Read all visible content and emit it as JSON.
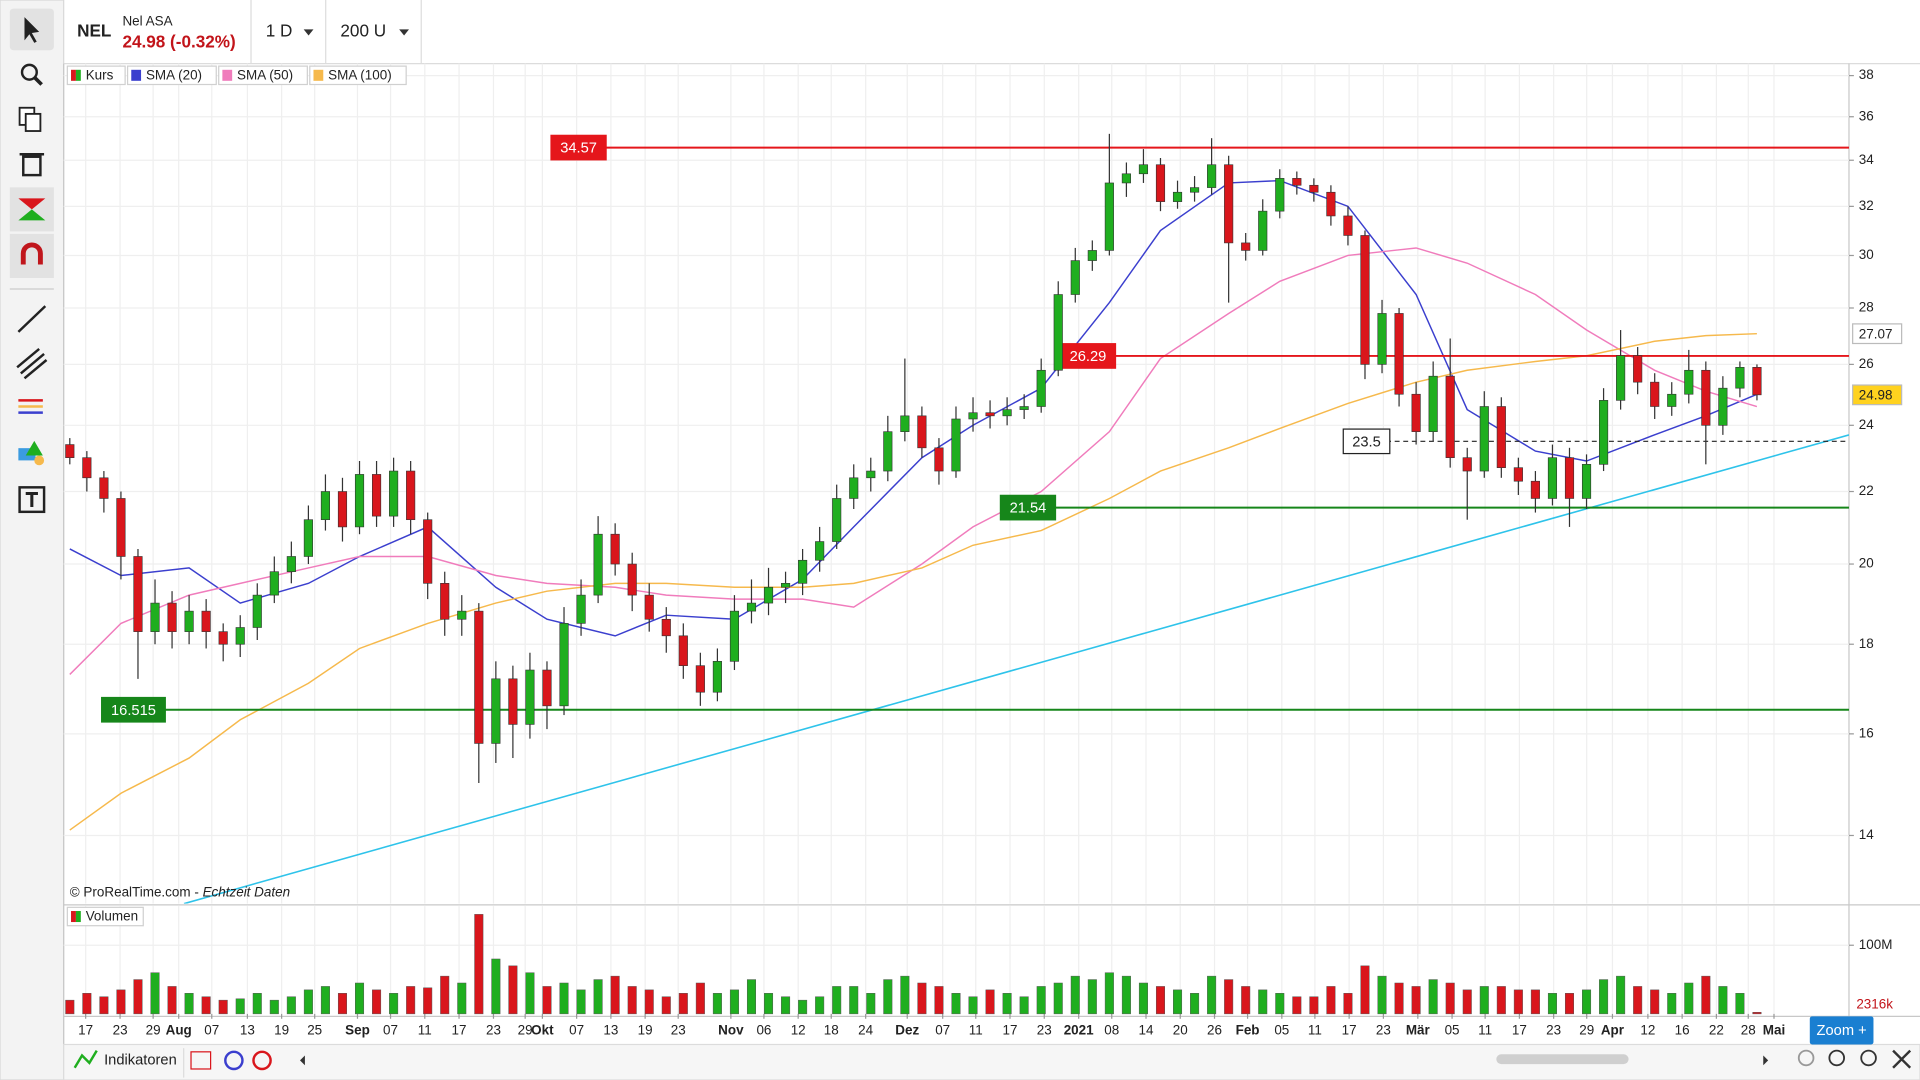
{
  "header": {
    "symbol": "NEL",
    "name": "Nel ASA",
    "quote": "24.98 (-0.32%)",
    "interval": "1 D",
    "units": "200 U"
  },
  "source": [
    "© ProRealTime.com -",
    "Echtzeit Daten"
  ],
  "footer": {
    "indicators": "Indikatoren",
    "zoom": "Zoom +"
  },
  "chart_data": [
    {
      "type": "candlestick",
      "log_scale": true,
      "grid": true,
      "up_color": "#1fae1f",
      "down_color": "#d9161c",
      "series": [
        {
          "name": "Kurs",
          "open": [
            23.4,
            23.0,
            22.4,
            21.8,
            20.2,
            18.3,
            19.0,
            18.3,
            18.8,
            18.3,
            18.0,
            18.4,
            19.2,
            19.8,
            20.2,
            21.2,
            22.0,
            21.0,
            22.5,
            21.3,
            22.6,
            21.2,
            19.5,
            18.6,
            18.8,
            15.8,
            17.2,
            16.2,
            17.4,
            16.6,
            18.5,
            19.2,
            20.8,
            20.0,
            19.2,
            18.6,
            18.2,
            17.5,
            16.9,
            17.6,
            18.8,
            19.0,
            19.4,
            19.5,
            20.1,
            20.6,
            21.8,
            22.4,
            22.6,
            23.8,
            24.3,
            23.3,
            22.6,
            24.2,
            24.4,
            24.3,
            24.5,
            24.6,
            25.8,
            28.5,
            29.8,
            30.2,
            33.0,
            33.4,
            33.8,
            32.2,
            32.6,
            32.8,
            33.8,
            30.5,
            30.2,
            31.8,
            33.2,
            32.9,
            32.6,
            31.6,
            30.8,
            26.0,
            27.8,
            25.0,
            23.8,
            25.6,
            23.0,
            22.6,
            24.6,
            22.7,
            22.3,
            21.8,
            23.0,
            21.8,
            22.8,
            24.8,
            26.3,
            25.4,
            24.6,
            25.0,
            25.8,
            24.0,
            25.2,
            25.9
          ],
          "high": [
            23.6,
            23.2,
            22.6,
            22.0,
            20.4,
            19.6,
            19.3,
            19.2,
            19.1,
            18.5,
            18.7,
            19.5,
            20.2,
            20.6,
            21.6,
            22.5,
            22.4,
            22.9,
            22.9,
            23.0,
            22.9,
            21.4,
            19.8,
            19.2,
            19.0,
            17.6,
            17.5,
            17.8,
            17.6,
            18.9,
            19.6,
            21.3,
            21.1,
            20.3,
            19.5,
            18.9,
            18.5,
            17.8,
            17.9,
            19.2,
            19.6,
            19.9,
            19.8,
            20.4,
            21.0,
            22.2,
            22.8,
            23.0,
            24.3,
            26.2,
            24.6,
            23.6,
            24.6,
            24.9,
            24.8,
            24.9,
            25.0,
            26.2,
            29.0,
            30.3,
            30.6,
            35.2,
            33.9,
            34.5,
            34.1,
            33.1,
            33.3,
            35.0,
            34.2,
            30.9,
            32.3,
            33.6,
            33.5,
            33.2,
            32.9,
            32.0,
            31.0,
            28.3,
            28.0,
            25.4,
            26.1,
            26.9,
            23.3,
            25.1,
            24.9,
            23.0,
            22.6,
            23.4,
            23.3,
            23.1,
            25.2,
            27.2,
            26.6,
            25.7,
            25.4,
            26.5,
            26.1,
            25.6,
            26.1,
            26.0
          ],
          "low": [
            22.8,
            22.0,
            21.4,
            19.6,
            17.2,
            18.0,
            17.9,
            18.0,
            17.9,
            17.6,
            17.7,
            18.1,
            19.0,
            19.5,
            20.0,
            20.9,
            20.6,
            20.8,
            21.0,
            21.0,
            20.8,
            19.1,
            18.2,
            18.2,
            15.0,
            15.4,
            15.5,
            15.9,
            16.1,
            16.4,
            18.2,
            19.0,
            19.7,
            18.8,
            18.3,
            17.8,
            17.2,
            16.6,
            16.7,
            17.4,
            18.5,
            18.7,
            19.0,
            19.2,
            19.8,
            20.4,
            21.5,
            22.0,
            22.3,
            23.5,
            23.0,
            22.2,
            22.4,
            23.8,
            23.9,
            24.0,
            24.2,
            24.4,
            25.6,
            28.2,
            29.4,
            30.0,
            32.4,
            33.0,
            31.8,
            31.9,
            32.2,
            32.5,
            28.2,
            29.8,
            30.0,
            31.5,
            32.5,
            32.2,
            31.2,
            30.4,
            25.5,
            25.7,
            24.6,
            23.4,
            23.5,
            22.7,
            21.2,
            22.4,
            22.4,
            21.9,
            21.4,
            21.6,
            21.0,
            21.5,
            22.6,
            24.5,
            25.0,
            24.2,
            24.3,
            24.7,
            22.8,
            23.7,
            24.9,
            24.8
          ],
          "close": [
            23.0,
            22.4,
            21.8,
            20.2,
            18.3,
            19.0,
            18.3,
            18.8,
            18.3,
            18.0,
            18.4,
            19.2,
            19.8,
            20.2,
            21.2,
            22.0,
            21.0,
            22.5,
            21.3,
            22.6,
            21.2,
            19.5,
            18.6,
            18.8,
            15.8,
            17.2,
            16.2,
            17.4,
            16.6,
            18.5,
            19.2,
            20.8,
            20.0,
            19.2,
            18.6,
            18.2,
            17.5,
            16.9,
            17.6,
            18.8,
            19.0,
            19.4,
            19.5,
            20.1,
            20.6,
            21.8,
            22.4,
            22.6,
            23.8,
            24.3,
            23.3,
            22.6,
            24.2,
            24.4,
            24.3,
            24.5,
            24.6,
            25.8,
            28.5,
            29.8,
            30.2,
            33.0,
            33.4,
            33.8,
            32.2,
            32.6,
            32.8,
            33.8,
            30.5,
            30.2,
            31.8,
            33.2,
            32.9,
            32.6,
            31.6,
            30.8,
            26.0,
            27.8,
            25.0,
            23.8,
            25.6,
            23.0,
            22.6,
            24.6,
            22.7,
            22.3,
            21.8,
            23.0,
            21.8,
            22.8,
            24.8,
            26.3,
            25.4,
            24.6,
            25.0,
            25.8,
            24.0,
            25.2,
            25.9,
            24.98
          ]
        }
      ],
      "lines": [
        {
          "name": "SMA (20)",
          "color": "#3b3fce",
          "x": [
            0,
            3,
            7,
            10,
            14,
            17,
            21,
            25,
            28,
            32,
            35,
            39,
            43,
            46,
            50,
            53,
            57,
            61,
            64,
            68,
            71,
            75,
            79,
            82,
            86,
            89,
            93,
            96,
            99
          ],
          "values": [
            20.4,
            19.7,
            19.9,
            19.0,
            19.5,
            20.2,
            21.0,
            19.4,
            18.6,
            18.2,
            18.7,
            18.6,
            19.6,
            21.0,
            23.0,
            24.0,
            25.2,
            28.2,
            31.0,
            33.0,
            33.1,
            32.0,
            28.5,
            24.5,
            23.2,
            22.9,
            23.7,
            24.3,
            25.0
          ]
        },
        {
          "name": "SMA (50)",
          "color": "#f07cbc",
          "x": [
            0,
            3,
            7,
            10,
            14,
            17,
            21,
            25,
            28,
            32,
            35,
            39,
            43,
            46,
            50,
            53,
            57,
            61,
            64,
            68,
            71,
            75,
            79,
            82,
            86,
            89,
            93,
            96,
            99
          ],
          "values": [
            17.3,
            18.5,
            19.2,
            19.5,
            19.9,
            20.2,
            20.2,
            19.7,
            19.5,
            19.4,
            19.2,
            19.1,
            19.1,
            18.9,
            20.0,
            21.0,
            22.0,
            23.8,
            26.2,
            27.8,
            29.0,
            30.0,
            30.3,
            29.7,
            28.5,
            27.2,
            25.8,
            25.1,
            24.6
          ]
        },
        {
          "name": "SMA (100)",
          "color": "#f6b94c",
          "x": [
            0,
            3,
            7,
            10,
            14,
            17,
            21,
            25,
            28,
            32,
            35,
            39,
            43,
            46,
            50,
            53,
            57,
            61,
            64,
            68,
            71,
            75,
            79,
            82,
            86,
            89,
            93,
            96,
            99
          ],
          "values": [
            14.1,
            14.8,
            15.5,
            16.3,
            17.1,
            17.9,
            18.5,
            19.0,
            19.3,
            19.5,
            19.5,
            19.4,
            19.4,
            19.5,
            19.9,
            20.5,
            20.9,
            21.8,
            22.6,
            23.3,
            23.9,
            24.7,
            25.4,
            25.8,
            26.1,
            26.3,
            26.8,
            27.0,
            27.07
          ]
        }
      ],
      "trendline": {
        "color": "#2ec3ea",
        "x": [
          6.7,
          104.4
        ],
        "values": [
          12.8,
          23.7
        ]
      },
      "levels": [
        {
          "value": 34.57,
          "color": "#e5161b"
        },
        {
          "value": 26.29,
          "color": "#e5161b"
        },
        {
          "value": 23.5,
          "color": "#222222",
          "style": "dashed"
        },
        {
          "value": 21.54,
          "color": "#16861a"
        },
        {
          "value": 16.515,
          "color": "#16861a"
        }
      ],
      "price_markers": [
        {
          "value": 27.07,
          "color": "#ffffff"
        },
        {
          "value": 24.98,
          "color": "#ffd21f"
        }
      ],
      "xlim": [
        -0.36,
        104.4
      ],
      "xticks": [
        {
          "value": 0.93,
          "label": "17"
        },
        {
          "value": 2.95,
          "label": "23"
        },
        {
          "value": 4.89,
          "label": "29"
        },
        {
          "value": 6.39,
          "label": "Aug"
        },
        {
          "value": 8.33,
          "label": "07"
        },
        {
          "value": 10.42,
          "label": "13"
        },
        {
          "value": 12.43,
          "label": "19"
        },
        {
          "value": 14.37,
          "label": "25"
        },
        {
          "value": 16.88,
          "label": "Sep"
        },
        {
          "value": 18.82,
          "label": "07"
        },
        {
          "value": 20.83,
          "label": "11"
        },
        {
          "value": 22.84,
          "label": "17"
        },
        {
          "value": 24.86,
          "label": "23"
        },
        {
          "value": 26.72,
          "label": "29"
        },
        {
          "value": 27.73,
          "label": "Okt"
        },
        {
          "value": 29.74,
          "label": "07"
        },
        {
          "value": 31.75,
          "label": "13"
        },
        {
          "value": 33.76,
          "label": "19"
        },
        {
          "value": 35.7,
          "label": "23"
        },
        {
          "value": 38.79,
          "label": "Nov"
        },
        {
          "value": 40.73,
          "label": "06"
        },
        {
          "value": 42.74,
          "label": "12"
        },
        {
          "value": 44.68,
          "label": "18"
        },
        {
          "value": 46.7,
          "label": "24"
        },
        {
          "value": 49.14,
          "label": "Dez"
        },
        {
          "value": 51.22,
          "label": "07"
        },
        {
          "value": 53.16,
          "label": "11"
        },
        {
          "value": 55.17,
          "label": "17"
        },
        {
          "value": 57.18,
          "label": "23"
        },
        {
          "value": 59.2,
          "label": "2021"
        },
        {
          "value": 61.14,
          "label": "08"
        },
        {
          "value": 63.15,
          "label": "14"
        },
        {
          "value": 65.16,
          "label": "20"
        },
        {
          "value": 67.17,
          "label": "26"
        },
        {
          "value": 69.11,
          "label": "Feb"
        },
        {
          "value": 71.12,
          "label": "05"
        },
        {
          "value": 73.06,
          "label": "11"
        },
        {
          "value": 75.07,
          "label": "17"
        },
        {
          "value": 77.08,
          "label": "23"
        },
        {
          "value": 79.1,
          "label": "Mär"
        },
        {
          "value": 81.11,
          "label": "05"
        },
        {
          "value": 83.05,
          "label": "11"
        },
        {
          "value": 85.06,
          "label": "17"
        },
        {
          "value": 87.07,
          "label": "23"
        },
        {
          "value": 89.01,
          "label": "29"
        },
        {
          "value": 90.52,
          "label": "Apr"
        },
        {
          "value": 92.6,
          "label": "12"
        },
        {
          "value": 94.61,
          "label": "16"
        },
        {
          "value": 96.62,
          "label": "22"
        },
        {
          "value": 98.49,
          "label": "28"
        },
        {
          "value": 100.0,
          "label": "Mai"
        }
      ],
      "ylim": [
        12.8,
        38.6
      ],
      "yticks": [
        14,
        16,
        18,
        20,
        22,
        24,
        26,
        28,
        30,
        32,
        34,
        36,
        38
      ]
    },
    {
      "type": "bar",
      "title": "Volumen",
      "values": [
        20,
        30,
        25,
        35,
        50,
        60,
        40,
        30,
        25,
        20,
        22,
        30,
        20,
        25,
        35,
        40,
        30,
        45,
        35,
        30,
        40,
        38,
        55,
        45,
        145,
        80,
        70,
        60,
        40,
        45,
        35,
        50,
        55,
        40,
        35,
        25,
        30,
        45,
        30,
        35,
        50,
        30,
        25,
        20,
        25,
        40,
        40,
        30,
        50,
        55,
        45,
        40,
        30,
        25,
        35,
        30,
        25,
        40,
        45,
        55,
        50,
        60,
        55,
        45,
        40,
        35,
        30,
        55,
        50,
        40,
        35,
        30,
        25,
        25,
        40,
        30,
        70,
        55,
        45,
        40,
        50,
        45,
        35,
        40,
        40,
        35,
        35,
        30,
        30,
        35,
        50,
        55,
        40,
        35,
        30,
        45,
        55,
        40,
        30,
        2.316
      ],
      "last_value_label": "2316k",
      "ylim": [
        0,
        157
      ],
      "yticks": [
        {
          "value": 100,
          "label": "100M"
        }
      ]
    }
  ]
}
